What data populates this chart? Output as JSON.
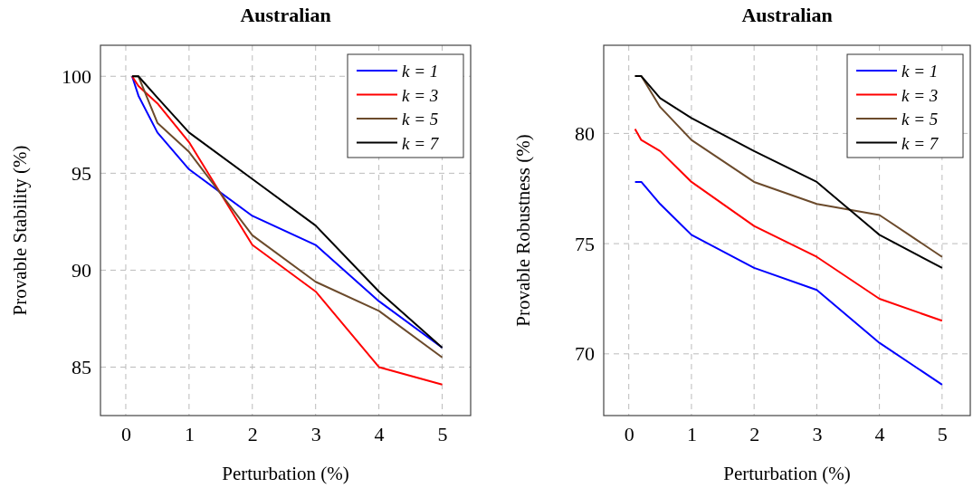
{
  "chart_data": [
    {
      "type": "line",
      "title": "Australian",
      "xlabel": "Perturbation (%)",
      "ylabel": "Provable Stability (%)",
      "x": [
        0.1,
        0.2,
        0.5,
        1,
        2,
        3,
        4,
        5
      ],
      "xlim": [
        -0.4,
        5.45
      ],
      "xticks": [
        0,
        1,
        2,
        3,
        4,
        5
      ],
      "ylim": [
        82.5,
        101.6
      ],
      "yticks": [
        85,
        90,
        95,
        100
      ],
      "grid": true,
      "legend": "top right",
      "marker": "none",
      "line_style": "solid",
      "series": [
        {
          "name": "k = 1",
          "color": "#0000ff",
          "values": [
            100,
            99.0,
            97.1,
            95.2,
            92.8,
            91.3,
            88.4,
            86.0
          ]
        },
        {
          "name": "k = 3",
          "color": "#ff0000",
          "values": [
            100,
            99.5,
            98.6,
            96.6,
            91.3,
            88.9,
            85.0,
            84.1
          ]
        },
        {
          "name": "k = 5",
          "color": "#6b4a2b",
          "values": [
            100,
            100,
            97.6,
            96.1,
            91.8,
            89.4,
            87.9,
            85.5
          ]
        },
        {
          "name": "k = 7",
          "color": "#000000",
          "values": [
            100,
            100,
            98.9,
            97.1,
            94.7,
            92.3,
            88.9,
            86.0
          ]
        }
      ]
    },
    {
      "type": "line",
      "title": "Australian",
      "xlabel": "Perturbation (%)",
      "ylabel": "Provable Robustness (%)",
      "x": [
        0.1,
        0.2,
        0.5,
        1,
        2,
        3,
        4,
        5
      ],
      "xlim": [
        -0.4,
        5.45
      ],
      "xticks": [
        0,
        1,
        2,
        3,
        4,
        5
      ],
      "ylim": [
        67.2,
        84
      ],
      "yticks": [
        70,
        75,
        80
      ],
      "grid": true,
      "legend": "top right",
      "marker": "none",
      "line_style": "solid",
      "series": [
        {
          "name": "k = 1",
          "color": "#0000ff",
          "values": [
            77.8,
            77.8,
            76.8,
            75.4,
            73.9,
            72.9,
            70.5,
            68.6
          ]
        },
        {
          "name": "k = 3",
          "color": "#ff0000",
          "values": [
            80.2,
            79.7,
            79.2,
            77.8,
            75.8,
            74.4,
            72.5,
            71.5
          ]
        },
        {
          "name": "k = 5",
          "color": "#6b4a2b",
          "values": [
            82.6,
            82.6,
            81.2,
            79.7,
            77.8,
            76.8,
            76.3,
            74.4
          ]
        },
        {
          "name": "k = 7",
          "color": "#000000",
          "values": [
            82.6,
            82.6,
            81.6,
            80.7,
            79.2,
            77.8,
            75.4,
            73.9
          ]
        }
      ]
    }
  ]
}
